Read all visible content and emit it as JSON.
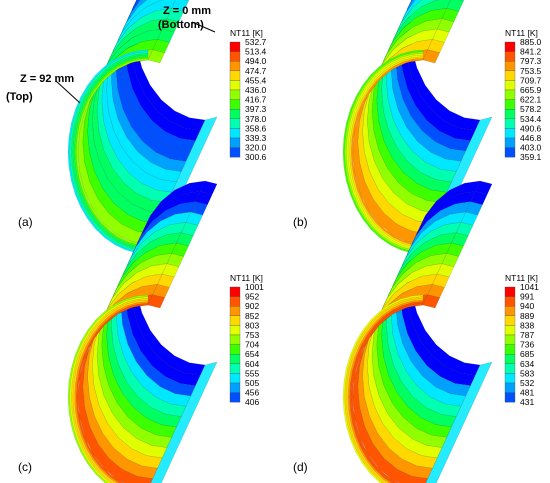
{
  "colormap": [
    "#0000ff",
    "#0050ff",
    "#00a0ff",
    "#00e8ff",
    "#00ffb0",
    "#00ff60",
    "#3cff00",
    "#90ff00",
    "#e0ff00",
    "#ffd800",
    "#ff9600",
    "#ff5500",
    "#ff0000"
  ],
  "annotations": {
    "bottom_label": "Z = 0 mm",
    "bottom_paren": "(Bottom)",
    "top_label": "Z = 92 mm",
    "top_paren": "(Top)"
  },
  "panels": [
    {
      "letter": "(a)",
      "legend": {
        "title": "NT11 [K]",
        "values": [
          "532.7",
          "513.4",
          "494.0",
          "474.7",
          "455.4",
          "436.0",
          "416.7",
          "397.3",
          "378.0",
          "358.6",
          "339.3",
          "320.0",
          "300.6"
        ]
      },
      "hot_level": 0.55
    },
    {
      "letter": "(b)",
      "legend": {
        "title": "NT11 [K]",
        "values": [
          "885.0",
          "841.2",
          "797.3",
          "753.5",
          "709.7",
          "665.9",
          "622.1",
          "578.2",
          "534.4",
          "490.6",
          "446.8",
          "403.0",
          "359.1"
        ]
      },
      "hot_level": 0.8
    },
    {
      "letter": "(c)",
      "legend": {
        "title": "NT11 [K]",
        "values": [
          "1001",
          "952",
          "902",
          "852",
          "803",
          "753",
          "704",
          "654",
          "604",
          "555",
          "505",
          "456",
          "406"
        ]
      },
      "hot_level": 0.9
    },
    {
      "letter": "(d)",
      "legend": {
        "title": "NT11 [K]",
        "values": [
          "1041",
          "991",
          "940",
          "889",
          "838",
          "787",
          "736",
          "685",
          "634",
          "583",
          "532",
          "481",
          "431"
        ]
      },
      "hot_level": 0.95
    }
  ]
}
